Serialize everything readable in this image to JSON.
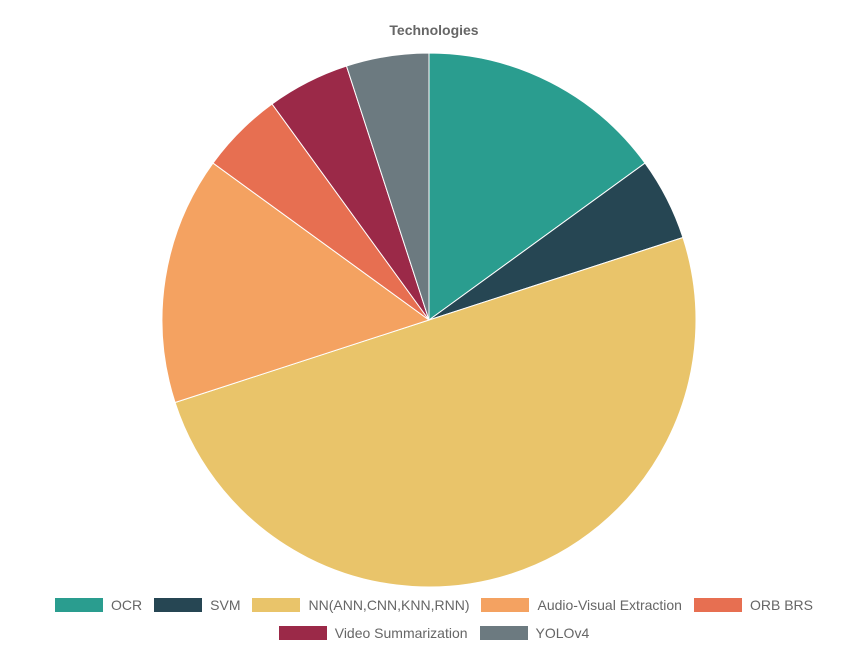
{
  "chart_data": {
    "type": "pie",
    "title": "Technologies",
    "categories": [
      "OCR",
      "SVM",
      "NN(ANN,CNN,KNN,RNN)",
      "Audio-Visual Extraction",
      "ORB BRS",
      "Video Summarization",
      "YOLOv4"
    ],
    "values": [
      3,
      1,
      10,
      3,
      1,
      1,
      1
    ],
    "colors": [
      "#2a9d8f",
      "#264653",
      "#e9c46a",
      "#f4a261",
      "#e76f51",
      "#9b2948",
      "#6c7a80"
    ],
    "legend_position": "bottom"
  }
}
